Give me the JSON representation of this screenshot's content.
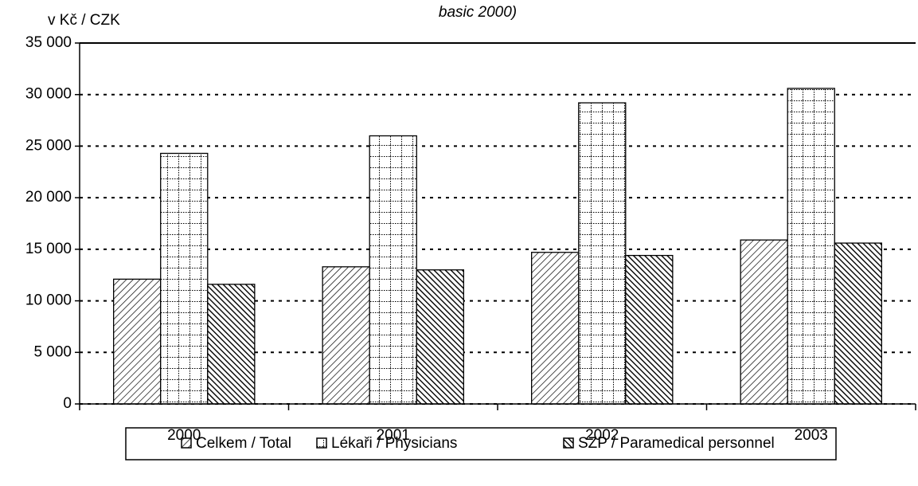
{
  "chart_data": {
    "type": "bar",
    "title": "basic 2000)",
    "y_label": "v Kč / CZK",
    "categories": [
      "2000",
      "2001",
      "2002",
      "2003"
    ],
    "series": [
      {
        "name": "Celkem / Total",
        "color": "#000000",
        "pattern": "hatch",
        "values": [
          12100,
          13300,
          14700,
          15900
        ]
      },
      {
        "name": "Lékaři / Physicians",
        "color": "#000000",
        "pattern": "grid",
        "values": [
          24300,
          26000,
          29200,
          30600
        ]
      },
      {
        "name": "SZP / Paramedical personnel",
        "color": "#000000",
        "pattern": "dense",
        "values": [
          11600,
          13000,
          14400,
          15600
        ]
      }
    ],
    "ylim": [
      0,
      35000
    ],
    "yticks": [
      0,
      {
        "value": 5000,
        "label": "5 000"
      },
      {
        "value": 10000,
        "label": "10 000"
      },
      {
        "value": 15000,
        "label": "15 000"
      },
      {
        "value": 20000,
        "label": "20 000"
      },
      {
        "value": 25000,
        "label": "25 000"
      },
      {
        "value": 30000,
        "label": "30 000"
      },
      {
        "value": 35000,
        "label": "35 000"
      }
    ],
    "grid": true,
    "legend": "bottom"
  }
}
